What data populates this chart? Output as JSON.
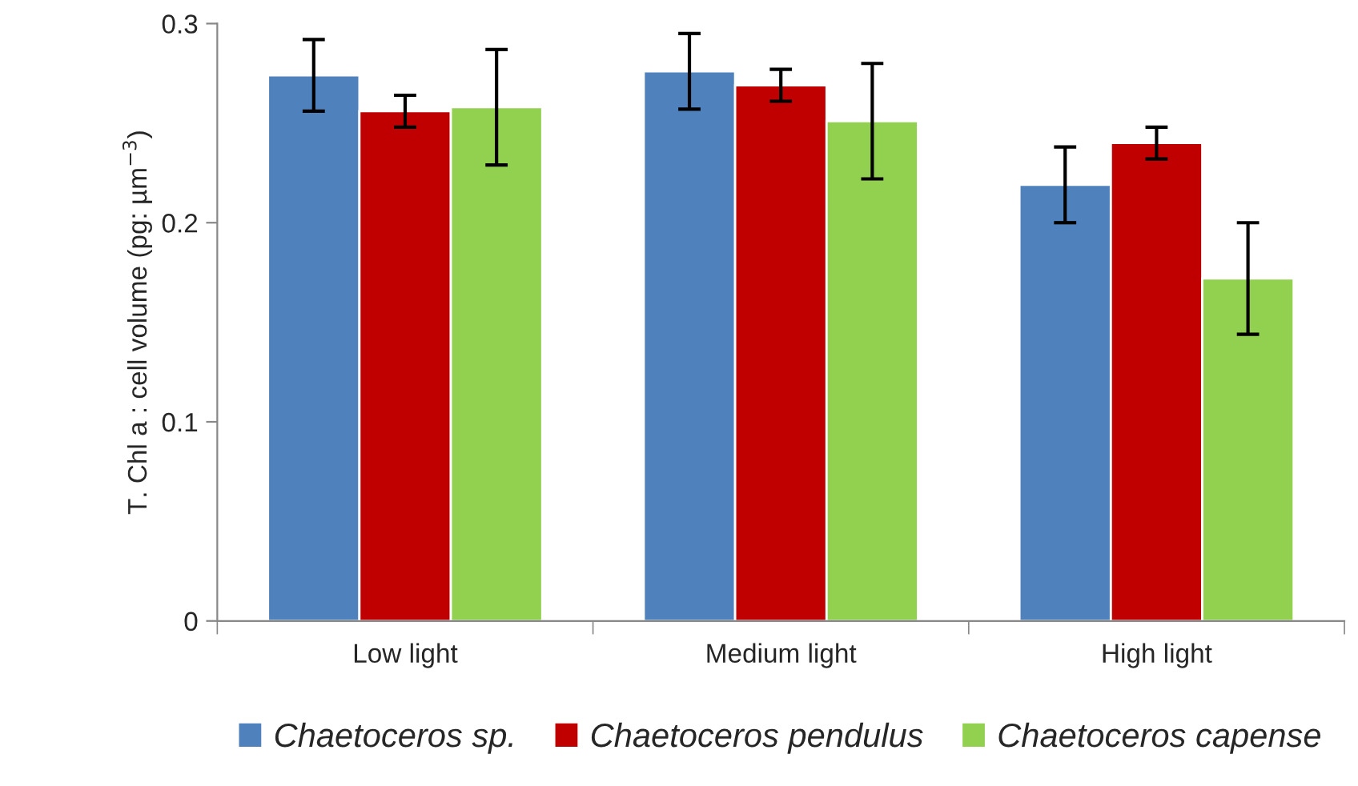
{
  "chart_data": {
    "type": "bar",
    "ylabel": "T. Chl a : cell volume (pg: µm$^{−3}$)",
    "categories": [
      "Low light",
      "Medium light",
      "High light"
    ],
    "series": [
      {
        "name": "Chaetoceros sp.",
        "color": "#4f81bd",
        "values": [
          0.274,
          0.276,
          0.219
        ],
        "errors": [
          0.018,
          0.019,
          0.019
        ]
      },
      {
        "name": "Chaetoceros pendulus",
        "color": "#c00000",
        "values": [
          0.256,
          0.269,
          0.24
        ],
        "errors": [
          0.008,
          0.008,
          0.008
        ]
      },
      {
        "name": "Chaetoceros capense",
        "color": "#92d050",
        "values": [
          0.258,
          0.251,
          0.172
        ],
        "errors": [
          0.029,
          0.029,
          0.028
        ]
      }
    ],
    "ylim": [
      0,
      0.3
    ],
    "yticks": [
      {
        "value": 0,
        "label": "0"
      },
      0.1,
      0.2,
      0.3
    ],
    "grid": false,
    "legend": "bottom"
  }
}
